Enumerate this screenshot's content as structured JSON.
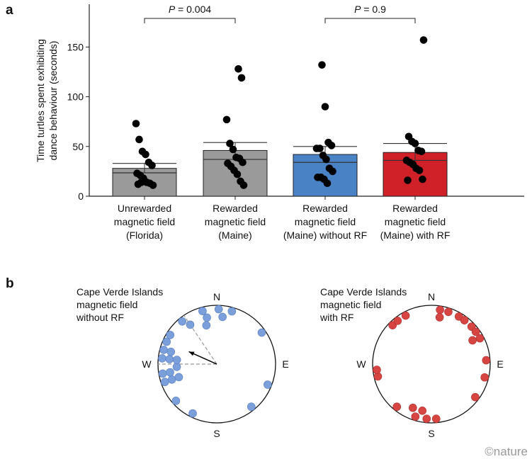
{
  "chart_data": [
    {
      "panel_label": "a",
      "type": "bar",
      "ylabel": [
        "Time turtles spent exhibiting",
        "dance behaviour (seconds)"
      ],
      "ylim": [
        0,
        193
      ],
      "yticks": [
        0,
        50,
        100,
        150
      ],
      "grid": false,
      "categories": [
        [
          "Unrewarded",
          "magnetic field",
          "(Florida)"
        ],
        [
          "Rewarded",
          "magnetic field",
          "(Maine)"
        ],
        [
          "Rewarded",
          "magnetic field",
          "(Maine) without RF"
        ],
        [
          "Rewarded",
          "magnetic field",
          "(Maine) with RF"
        ]
      ],
      "colors": [
        "#9a9a9a",
        "#9a9a9a",
        "#4a82c6",
        "#d02028"
      ],
      "means": [
        28,
        46,
        42,
        44
      ],
      "medians": [
        23.5,
        37,
        34,
        36
      ],
      "error_upper": [
        33,
        54,
        50,
        53
      ],
      "points": [
        [
          73,
          57,
          45,
          42,
          34,
          31,
          23,
          21,
          18,
          14,
          13,
          11,
          12,
          14
        ],
        [
          128,
          119,
          77,
          53,
          47,
          39,
          38,
          34,
          33,
          30,
          26,
          22,
          15,
          11
        ],
        [
          132,
          90,
          54,
          51,
          48,
          48,
          41,
          37,
          28,
          25,
          19,
          19,
          17,
          13
        ],
        [
          157,
          60,
          55,
          53,
          46,
          45,
          36,
          34,
          32,
          28,
          26,
          17,
          16
        ]
      ],
      "comparisons": [
        {
          "groups": [
            0,
            1
          ],
          "label": "P = 0.004"
        },
        {
          "groups": [
            2,
            3
          ],
          "label": "P = 0.9"
        }
      ]
    },
    {
      "panel_label": "b",
      "type": "scatter",
      "subtype": "circular",
      "compass": [
        "N",
        "E",
        "S",
        "W"
      ],
      "plots": [
        {
          "title": [
            "Cape Verde Islands",
            "magnetic field",
            "without RF"
          ],
          "color": "#7a9fdb",
          "angles_deg": [
            345,
            348,
            345,
            2,
            7,
            16,
            55,
            112,
            141,
            206,
            228,
            251,
            251,
            251,
            260,
            260,
            266,
            276,
            276,
            276,
            285,
            285,
            294,
            302,
            321,
            326
          ],
          "mean_vector": {
            "angle_deg": 294,
            "length": 0.52
          },
          "confidence_interval_deg": [
            270,
            326
          ]
        },
        {
          "title": [
            "Cape Verde Islands",
            "magnetic field",
            "with RF"
          ],
          "color": "#d64541",
          "angles_deg": [
            9,
            18,
            10,
            30,
            37,
            47,
            54,
            62,
            60,
            86,
            104,
            127,
            175,
            185,
            191,
            197,
            203,
            219,
            257,
            264,
            315,
            322,
            332
          ]
        }
      ]
    }
  ],
  "watermark": "©nature"
}
